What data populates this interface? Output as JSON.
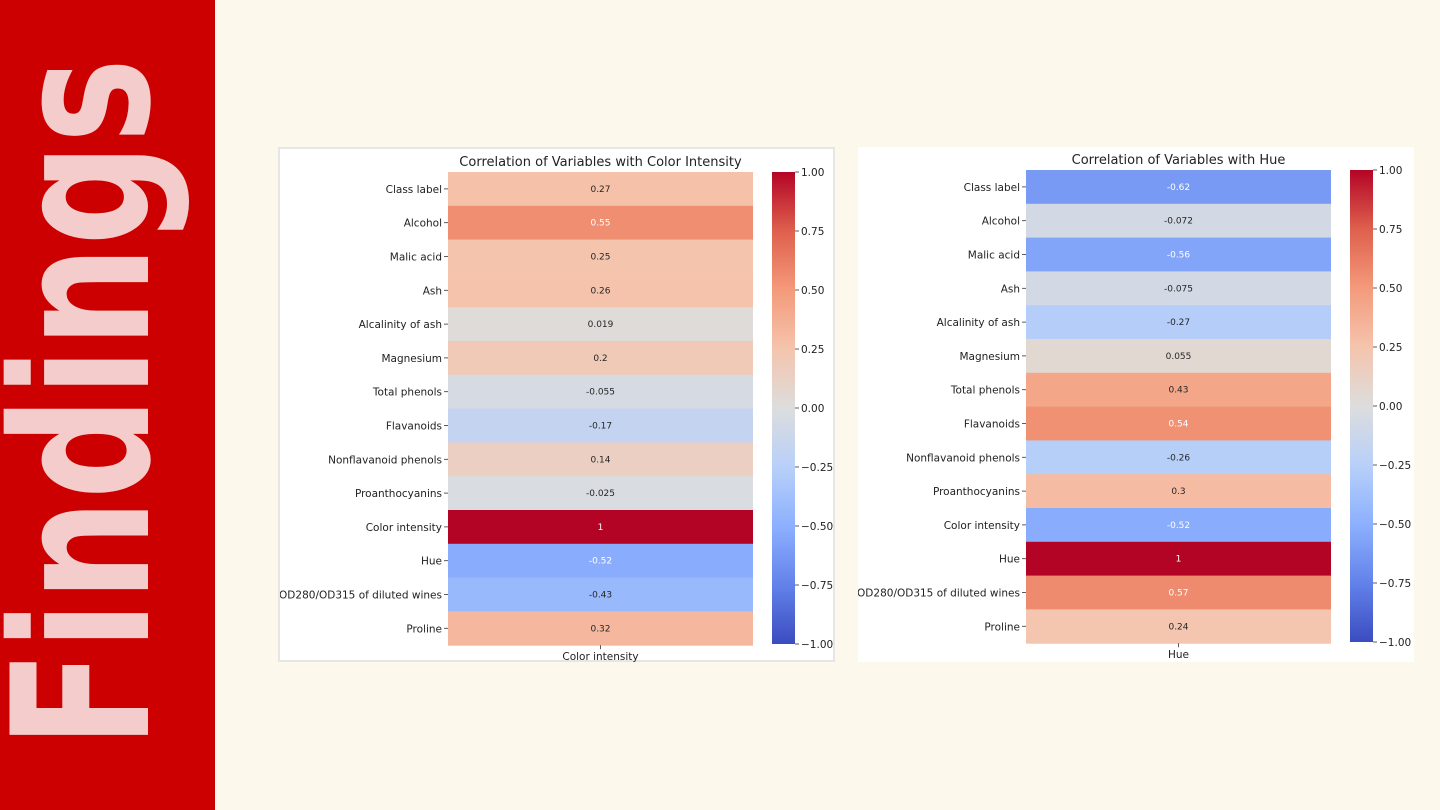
{
  "sidebar": {
    "title": "Findings",
    "background_color": "#cc0000",
    "text_color": "#f4cccc"
  },
  "page": {
    "background_color": "#fcf8ec"
  },
  "chart_data": [
    {
      "type": "heatmap",
      "title": "Correlation of Variables with Color Intensity",
      "xlabel": "Color intensity",
      "x_tick_label": "Color intensity",
      "categories": [
        "Class label",
        "Alcohol",
        "Malic acid",
        "Ash",
        "Alcalinity of ash",
        "Magnesium",
        "Total phenols",
        "Flavanoids",
        "Nonflavanoid phenols",
        "Proanthocyanins",
        "Color intensity",
        "Hue",
        "OD280/OD315 of diluted wines",
        "Proline"
      ],
      "values": [
        0.27,
        0.55,
        0.25,
        0.26,
        0.019,
        0.2,
        -0.055,
        -0.17,
        0.14,
        -0.025,
        1,
        -0.52,
        -0.43,
        0.32
      ],
      "value_labels": [
        "0.27",
        "0.55",
        "0.25",
        "0.26",
        "0.019",
        "0.2",
        "-0.055",
        "-0.17",
        "0.14",
        "-0.025",
        "1",
        "-0.52",
        "-0.43",
        "0.32"
      ],
      "colormap": "coolwarm",
      "vmin": -1,
      "vmax": 1,
      "colorbar_ticks": [
        "1.00",
        "0.75",
        "0.50",
        "0.25",
        "0.00",
        "−0.25",
        "−0.50",
        "−0.75",
        "−1.00"
      ]
    },
    {
      "type": "heatmap",
      "title": "Correlation of Variables with Hue",
      "xlabel": "Hue",
      "x_tick_label": "Hue",
      "categories": [
        "Class label",
        "Alcohol",
        "Malic acid",
        "Ash",
        "Alcalinity of ash",
        "Magnesium",
        "Total phenols",
        "Flavanoids",
        "Nonflavanoid phenols",
        "Proanthocyanins",
        "Color intensity",
        "Hue",
        "OD280/OD315 of diluted wines",
        "Proline"
      ],
      "values": [
        -0.62,
        -0.072,
        -0.56,
        -0.075,
        -0.27,
        0.055,
        0.43,
        0.54,
        -0.26,
        0.3,
        -0.52,
        1,
        0.57,
        0.24
      ],
      "value_labels": [
        "-0.62",
        "-0.072",
        "-0.56",
        "-0.075",
        "-0.27",
        "0.055",
        "0.43",
        "0.54",
        "-0.26",
        "0.3",
        "-0.52",
        "1",
        "0.57",
        "0.24"
      ],
      "colormap": "coolwarm",
      "vmin": -1,
      "vmax": 1,
      "colorbar_ticks": [
        "1.00",
        "0.75",
        "0.50",
        "0.25",
        "0.00",
        "−0.25",
        "−0.50",
        "−0.75",
        "−1.00"
      ]
    }
  ]
}
